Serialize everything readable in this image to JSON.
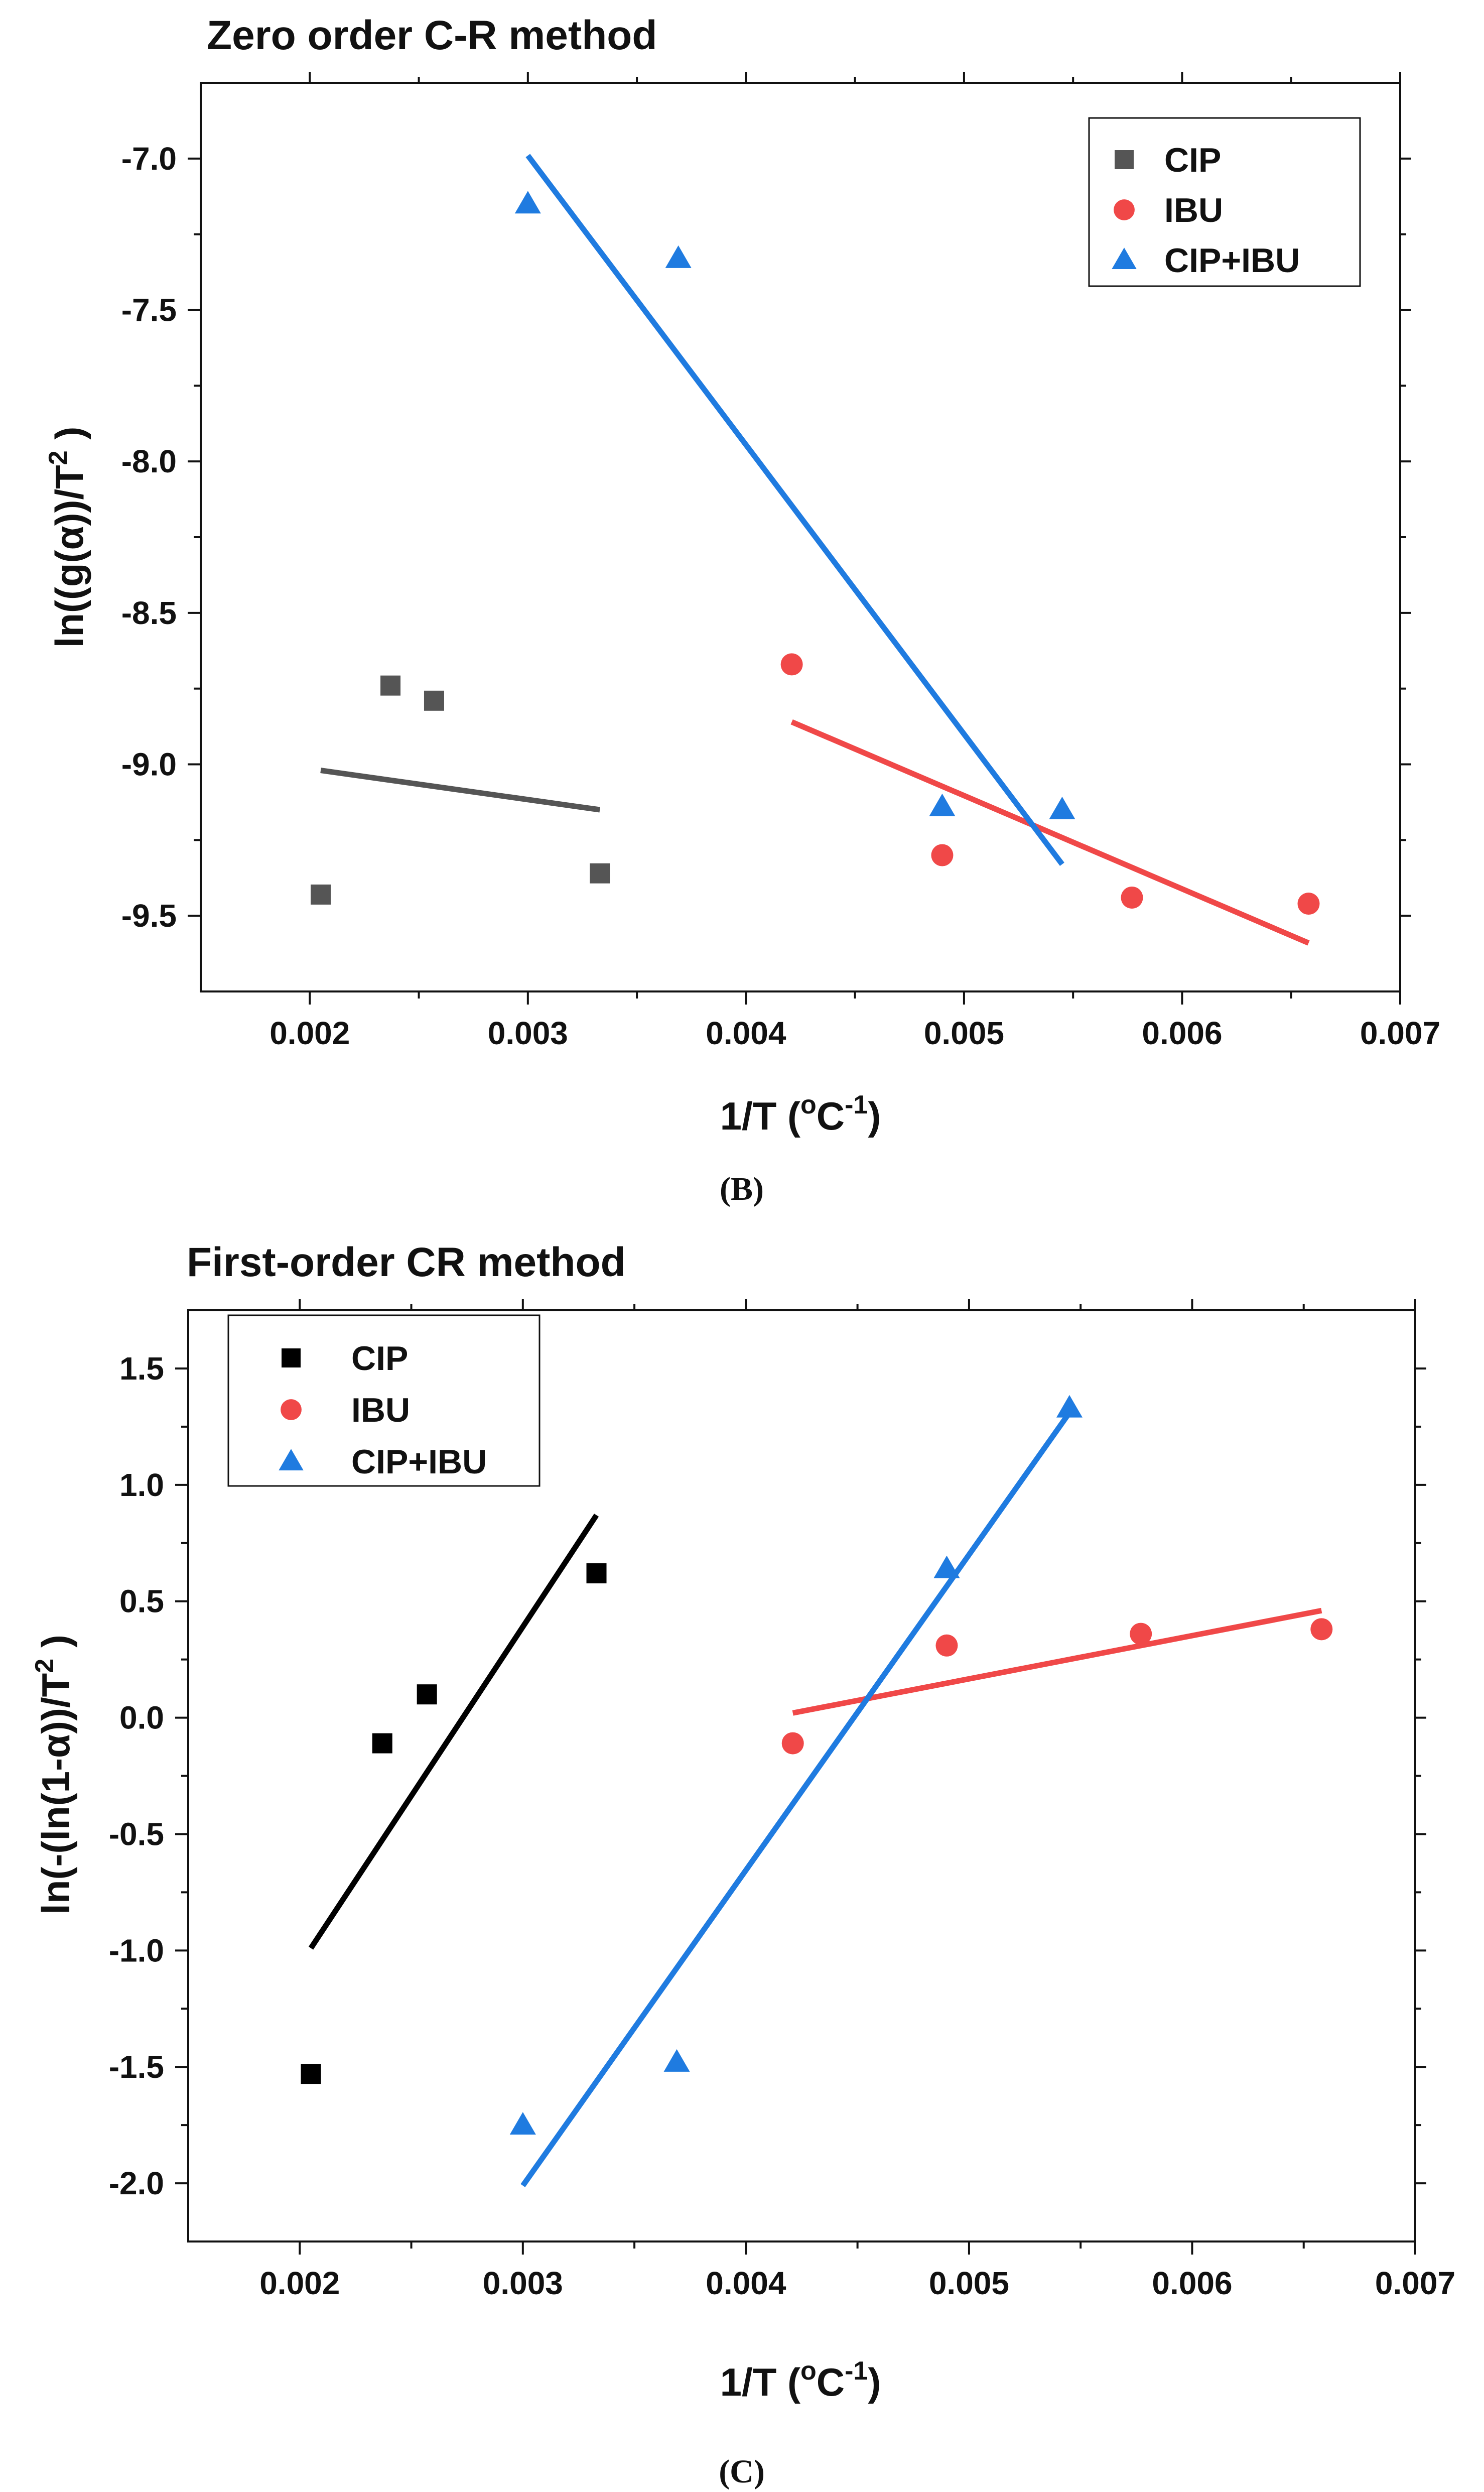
{
  "chart_data": [
    {
      "type": "scatter",
      "title": "Zero order C-R method",
      "xlabel": "1/T (",
      "xlabel_main": "1/T (",
      "xlabel_unit": "oC",
      "xlabel_unit_base": "C",
      "xlabel_unit_o": "o",
      "xlabel_exp": "-1",
      "xlabel_close": ")",
      "ylabel_main": "ln((g(α))/T",
      "ylabel_exp": "2",
      "ylabel_close": " )",
      "caption": "(B)",
      "xlim": [
        0.0015,
        0.007
      ],
      "ylim": [
        -9.75,
        -6.75
      ],
      "xticks": [
        0.002,
        0.003,
        0.004,
        0.005,
        0.006,
        0.007
      ],
      "xtick_labels": [
        "0.002",
        "0.003",
        "0.004",
        "0.005",
        "0.006",
        "0.007"
      ],
      "yticks": [
        -7.0,
        -7.5,
        -8.0,
        -8.5,
        -9.0,
        -9.5
      ],
      "ytick_labels": [
        "-7.0",
        "-7.5",
        "-8.0",
        "-8.5",
        "-9.0",
        "-9.5"
      ],
      "legend_position": "top-right",
      "series": [
        {
          "name": "CIP",
          "marker": "square",
          "color": "#555555",
          "x": [
            0.00205,
            0.00237,
            0.00257,
            0.00333
          ],
          "y": [
            -9.43,
            -8.74,
            -8.79,
            -9.36
          ],
          "fit": {
            "x": [
              0.00205,
              0.00333
            ],
            "y": [
              -9.02,
              -9.15
            ]
          }
        },
        {
          "name": "IBU",
          "marker": "circle",
          "color": "#f04848",
          "x": [
            0.00421,
            0.0049,
            0.00577,
            0.00658
          ],
          "y": [
            -8.67,
            -9.3,
            -9.44,
            -9.46
          ],
          "fit": {
            "x": [
              0.00421,
              0.00658
            ],
            "y": [
              -8.86,
              -9.59
            ]
          }
        },
        {
          "name": "CIP+IBU",
          "marker": "triangle",
          "color": "#1f7be0",
          "x": [
            0.003,
            0.00369,
            0.0049,
            0.00545
          ],
          "y": [
            -7.15,
            -7.33,
            -9.14,
            -9.15
          ],
          "fit": {
            "x": [
              0.003,
              0.00545
            ],
            "y": [
              -6.99,
              -9.33
            ]
          }
        }
      ]
    },
    {
      "type": "scatter",
      "title": "First-order CR method",
      "xlabel_main": "1/T (",
      "xlabel_unit_o": "o",
      "xlabel_unit_base": "C",
      "xlabel_exp": "-1",
      "xlabel_close": ")",
      "ylabel_main": "ln(-(ln(1-α))/T",
      "ylabel_exp": "2",
      "ylabel_close": " )",
      "caption": "(C)",
      "xlim": [
        0.0015,
        0.007
      ],
      "ylim": [
        -2.25,
        1.75
      ],
      "xticks": [
        0.002,
        0.003,
        0.004,
        0.005,
        0.006,
        0.007
      ],
      "xtick_labels": [
        "0.002",
        "0.003",
        "0.004",
        "0.005",
        "0.006",
        "0.007"
      ],
      "yticks": [
        1.5,
        1.0,
        0.5,
        0.0,
        -0.5,
        -1.0,
        -1.5,
        -2.0
      ],
      "ytick_labels": [
        "1.5",
        "1.0",
        "0.5",
        "0.0",
        "-0.5",
        "-1.0",
        "-1.5",
        "-2.0"
      ],
      "legend_position": "top-left",
      "series": [
        {
          "name": "CIP",
          "marker": "square",
          "color": "#000000",
          "x": [
            0.00205,
            0.00237,
            0.00257,
            0.00333
          ],
          "y": [
            -1.53,
            -0.11,
            0.1,
            0.62
          ],
          "fit": {
            "x": [
              0.00205,
              0.00333
            ],
            "y": [
              -0.99,
              0.87
            ]
          }
        },
        {
          "name": "IBU",
          "marker": "circle",
          "color": "#f04848",
          "x": [
            0.00421,
            0.0049,
            0.00577,
            0.00658
          ],
          "y": [
            -0.11,
            0.31,
            0.36,
            0.38
          ],
          "fit": {
            "x": [
              0.00421,
              0.00658
            ],
            "y": [
              0.02,
              0.46
            ]
          }
        },
        {
          "name": "CIP+IBU",
          "marker": "triangle",
          "color": "#1f7be0",
          "x": [
            0.003,
            0.00369,
            0.0049,
            0.00545
          ],
          "y": [
            -1.75,
            -1.48,
            0.64,
            1.33
          ],
          "fit": {
            "x": [
              0.003,
              0.00545
            ],
            "y": [
              -2.01,
              1.31
            ]
          }
        }
      ]
    }
  ]
}
